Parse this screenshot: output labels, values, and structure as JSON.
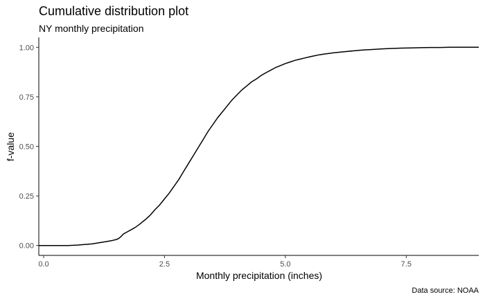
{
  "chart_data": {
    "type": "line",
    "title": "Cumulative distribution plot",
    "subtitle": "NY monthly precipitation",
    "xlabel": "Monthly precipitation (inches)",
    "ylabel": "f-value",
    "caption": "Data source: NOAA",
    "xlim": [
      -0.1,
      9.0
    ],
    "ylim": [
      -0.05,
      1.05
    ],
    "x_ticks": [
      0.0,
      2.5,
      5.0,
      7.5
    ],
    "x_tick_labels": [
      "0.0",
      "2.5",
      "5.0",
      "7.5"
    ],
    "y_ticks": [
      0.0,
      0.25,
      0.5,
      0.75,
      1.0
    ],
    "y_tick_labels": [
      "0.00",
      "0.25",
      "0.50",
      "0.75",
      "1.00"
    ],
    "grid": false,
    "line_color": "#000000",
    "series": [
      {
        "x": [
          -0.1,
          0.5,
          0.7,
          0.8,
          0.9,
          1.0,
          1.1,
          1.2,
          1.3,
          1.4,
          1.5,
          1.55,
          1.6,
          1.65,
          1.7,
          1.8,
          1.9,
          2.0,
          2.1,
          2.2,
          2.3,
          2.4,
          2.5,
          2.6,
          2.7,
          2.8,
          2.9,
          3.0,
          3.1,
          3.2,
          3.3,
          3.4,
          3.5,
          3.6,
          3.7,
          3.8,
          3.9,
          4.0,
          4.1,
          4.2,
          4.3,
          4.4,
          4.5,
          4.6,
          4.7,
          4.8,
          4.9,
          5.0,
          5.1,
          5.2,
          5.3,
          5.4,
          5.5,
          5.6,
          5.7,
          5.8,
          5.9,
          6.0,
          6.2,
          6.4,
          6.6,
          6.8,
          7.0,
          7.2,
          7.4,
          7.6,
          7.8,
          8.0,
          8.2,
          8.4,
          8.6,
          8.8,
          9.0
        ],
        "y": [
          0.0,
          0.0,
          0.002,
          0.004,
          0.006,
          0.008,
          0.012,
          0.016,
          0.02,
          0.024,
          0.03,
          0.035,
          0.045,
          0.058,
          0.065,
          0.078,
          0.092,
          0.11,
          0.13,
          0.152,
          0.18,
          0.205,
          0.235,
          0.265,
          0.3,
          0.335,
          0.375,
          0.415,
          0.455,
          0.495,
          0.535,
          0.575,
          0.61,
          0.645,
          0.675,
          0.705,
          0.735,
          0.76,
          0.785,
          0.805,
          0.825,
          0.84,
          0.858,
          0.872,
          0.885,
          0.898,
          0.908,
          0.918,
          0.926,
          0.934,
          0.94,
          0.946,
          0.952,
          0.957,
          0.962,
          0.966,
          0.969,
          0.972,
          0.977,
          0.982,
          0.986,
          0.989,
          0.992,
          0.994,
          0.996,
          0.997,
          0.998,
          0.999,
          0.999,
          1.0,
          1.0,
          1.0,
          1.0
        ]
      }
    ]
  }
}
